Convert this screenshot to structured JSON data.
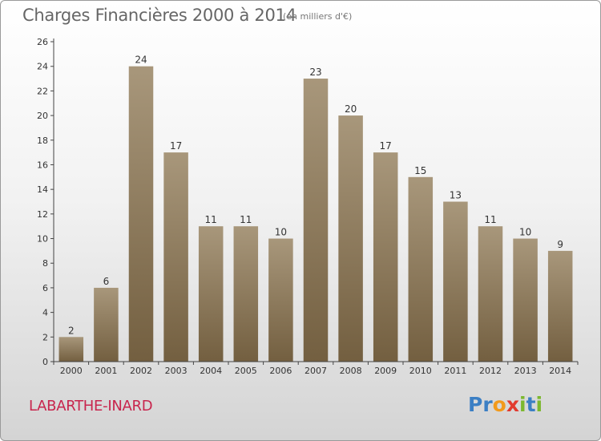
{
  "header": {
    "title": "Charges Financières 2000 à 2014",
    "subtitle": "(en milliers d'€)"
  },
  "footer": {
    "commune": "LABARTHE-INARD",
    "logo_letters": [
      {
        "char": "P",
        "color": "#3b7fc4"
      },
      {
        "char": "r",
        "color": "#3b7fc4"
      },
      {
        "char": "o",
        "color": "#f29a1b"
      },
      {
        "char": "x",
        "color": "#e23a2e"
      },
      {
        "char": "i",
        "color": "#7cb82f"
      },
      {
        "char": "t",
        "color": "#3b7fc4"
      },
      {
        "char": "i",
        "color": "#7cb82f"
      }
    ]
  },
  "colors": {
    "bar_top": "#a8977b",
    "bar_bottom": "#735f40",
    "axis": "#444444",
    "text": "#333333"
  },
  "chart_data": {
    "type": "bar",
    "title": "Charges Financières 2000 à 2014",
    "subtitle": "(en milliers d'€)",
    "categories": [
      "2000",
      "2001",
      "2002",
      "2003",
      "2004",
      "2005",
      "2006",
      "2007",
      "2008",
      "2009",
      "2010",
      "2011",
      "2012",
      "2013",
      "2014"
    ],
    "values": [
      2,
      6,
      24,
      17,
      11,
      11,
      10,
      23,
      20,
      17,
      15,
      13,
      11,
      10,
      9
    ],
    "ylim": [
      0,
      26
    ],
    "yticks": [
      0,
      2,
      4,
      6,
      8,
      10,
      12,
      14,
      16,
      18,
      20,
      22,
      24,
      26
    ],
    "grid": false,
    "legend": "none"
  }
}
